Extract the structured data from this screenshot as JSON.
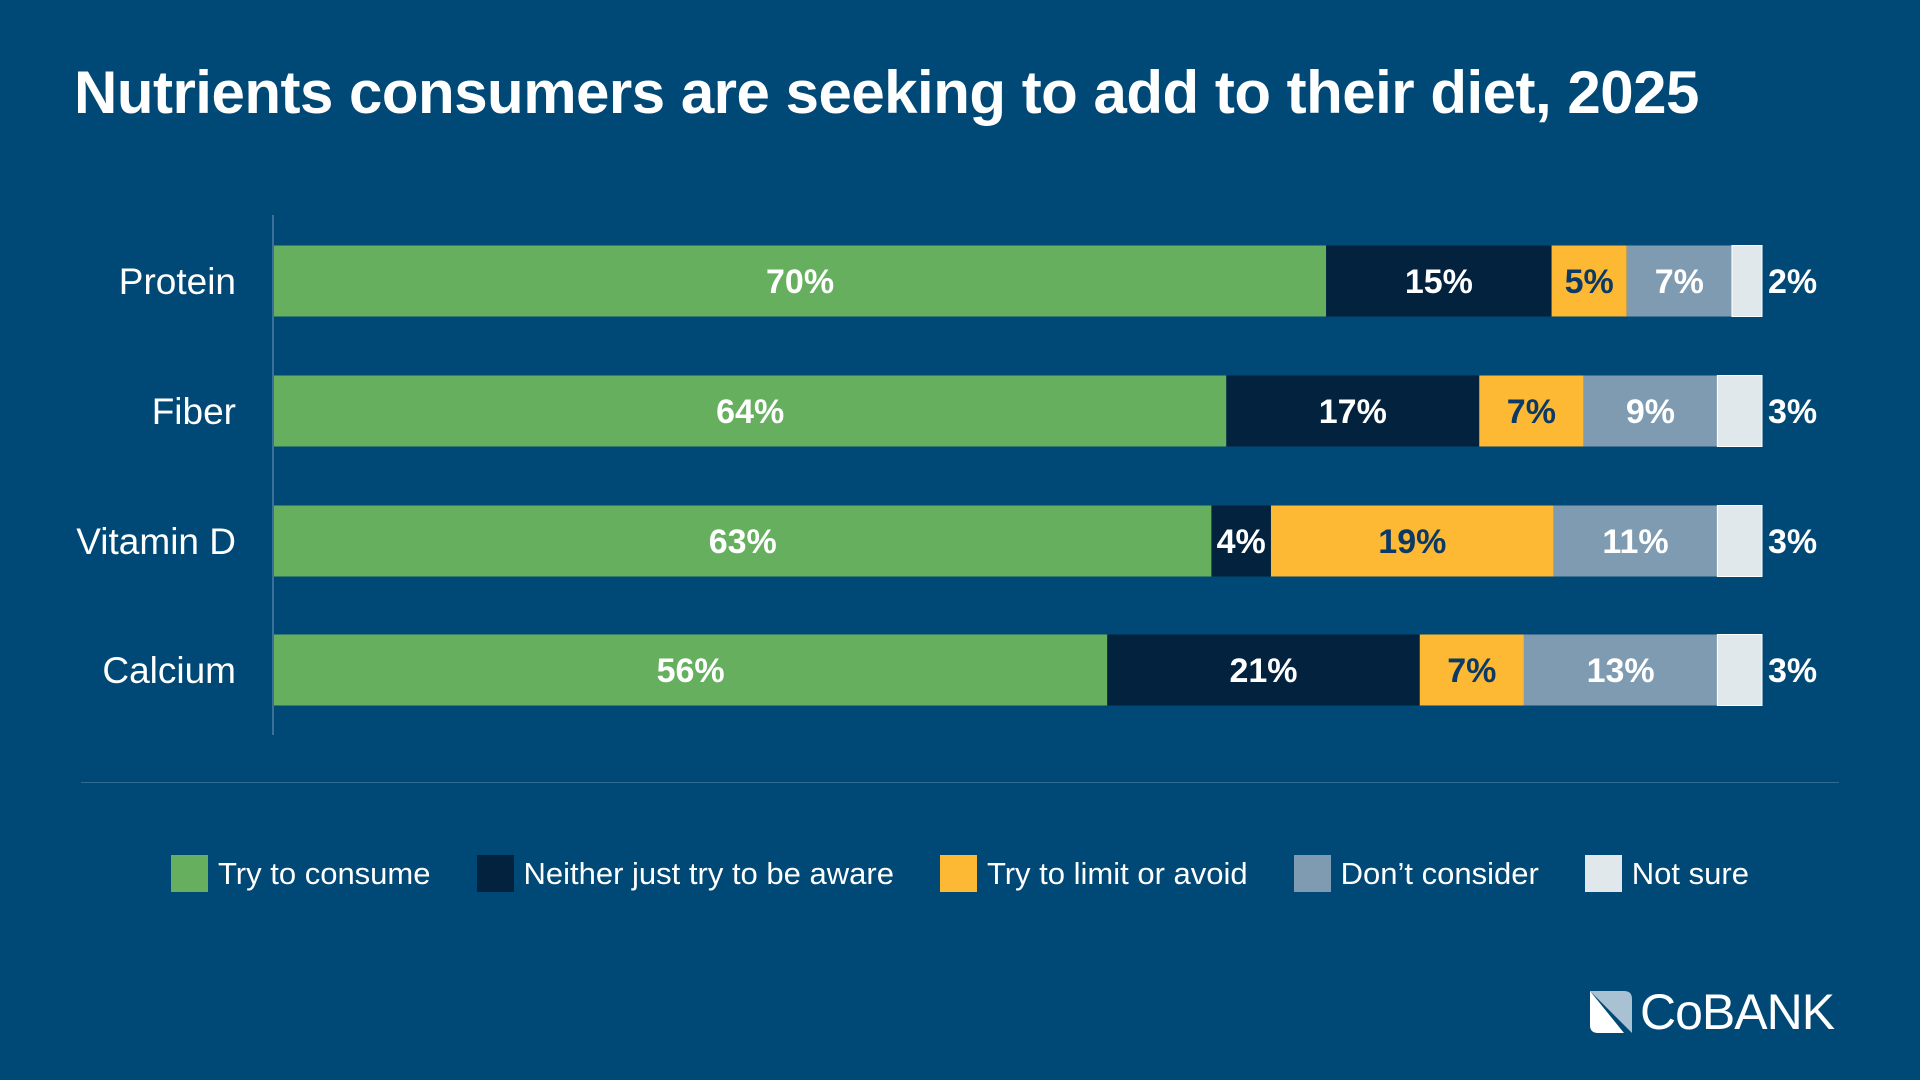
{
  "chart_data": {
    "type": "bar",
    "orientation": "horizontal",
    "stacked": true,
    "title": "Nutrients consumers are seeking to add to their diet, 2025",
    "categories": [
      "Protein",
      "Fiber",
      "Vitamin D",
      "Calcium"
    ],
    "series": [
      {
        "name": "Try to consume",
        "color": "#65AF5E",
        "label_color": "#FFFFFF",
        "values": [
          70,
          64,
          63,
          56
        ]
      },
      {
        "name": "Neither just try to be aware",
        "color": "#03223D",
        "label_color": "#FFFFFF",
        "values": [
          15,
          17,
          4,
          21
        ]
      },
      {
        "name": "Try to limit or avoid",
        "color": "#FDB933",
        "label_color": "#0B3A66",
        "values": [
          5,
          7,
          19,
          7
        ]
      },
      {
        "name": "Don’t consider",
        "color": "#7E9BB1",
        "label_color": "#FFFFFF",
        "values": [
          7,
          9,
          11,
          13
        ]
      },
      {
        "name": "Not sure",
        "color": "#E1E8EC",
        "label_color": "#FFFFFF",
        "values": [
          2,
          3,
          3,
          3
        ],
        "label_outside": true
      }
    ],
    "value_suffix": "%",
    "legend_position": "bottom",
    "grid": false
  },
  "background": "#004876",
  "logo": {
    "text": "CoBANK"
  }
}
